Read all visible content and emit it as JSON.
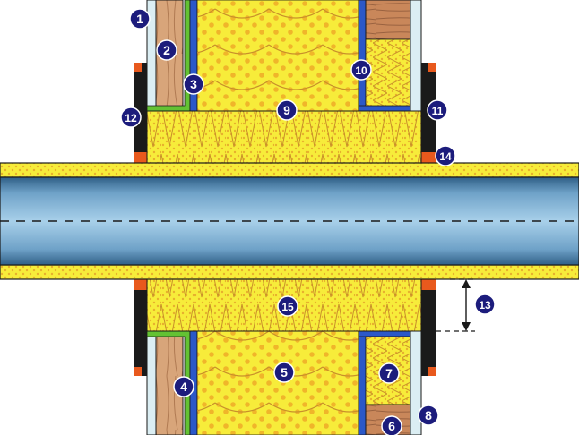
{
  "callouts": [
    {
      "id": "c1",
      "text": "1"
    },
    {
      "id": "c2",
      "text": "2"
    },
    {
      "id": "c3",
      "text": "3"
    },
    {
      "id": "c4",
      "text": "4"
    },
    {
      "id": "c5",
      "text": "5"
    },
    {
      "id": "c6",
      "text": "6"
    },
    {
      "id": "c7",
      "text": "7"
    },
    {
      "id": "c8",
      "text": "8"
    },
    {
      "id": "c9",
      "text": "9"
    },
    {
      "id": "c10",
      "text": "10"
    },
    {
      "id": "c11",
      "text": "11"
    },
    {
      "id": "c12",
      "text": "12"
    },
    {
      "id": "c13",
      "text": "13"
    },
    {
      "id": "c14",
      "text": "14"
    },
    {
      "id": "c15",
      "text": "15"
    }
  ],
  "colors": {
    "callout_fill": "#1c1c7c",
    "callout_text": "#ffffff",
    "insulation_yellow": "#f7ec3a",
    "insulation_dot": "#f0b52a",
    "wood": "#d8a57a",
    "wood_grain": "#b07a52",
    "stud_blue": "#2b58c8",
    "membrane_green": "#63c233",
    "pipe_mid": "#9dc7e4",
    "pipe_edge": "#2f5f86",
    "sleeve_black": "#1a1a1a",
    "seal_orange": "#e8591d",
    "board_light": "#dbeef3"
  }
}
